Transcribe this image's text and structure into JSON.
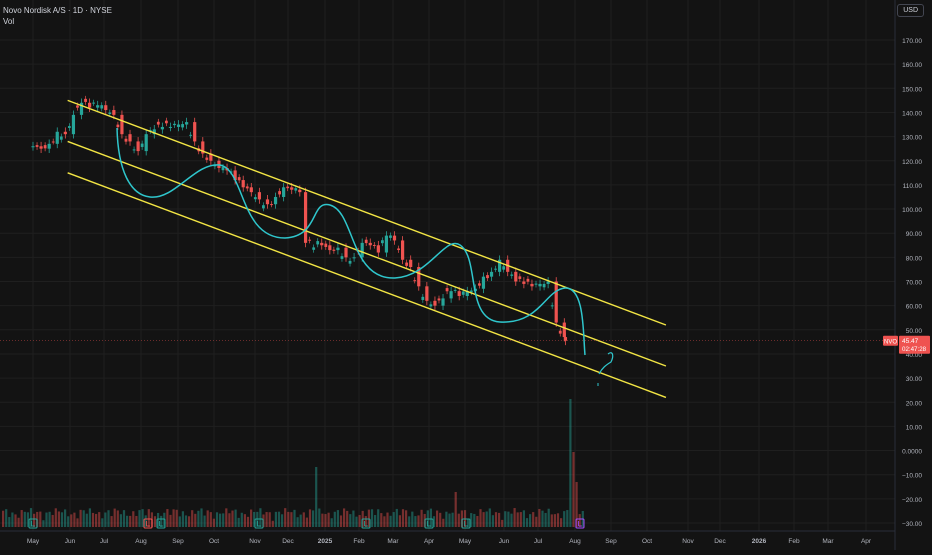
{
  "legend": {
    "title": "Novo Nordisk A/S · 1D · NYSE",
    "vol_label": "Vol"
  },
  "currency_button": "USD",
  "price_tag": {
    "symbol": "NVO",
    "price": "45.47",
    "countdown": "02:47:28"
  },
  "colors": {
    "background": "#131313",
    "up": "#26a69a",
    "down": "#ef5350",
    "channel": "#f2e544",
    "wave": "#2fc6cc",
    "grid": "#1f1f1f",
    "axis_text": "#b2b5be",
    "price_line": "#ef5350"
  },
  "chart_data": {
    "type": "candlestick",
    "y_axis_ticks": [
      "170.00",
      "160.00",
      "150.00",
      "140.00",
      "130.00",
      "120.00",
      "110.00",
      "100.00",
      "90.00",
      "80.00",
      "70.00",
      "60.00",
      "50.00",
      "40.00",
      "30.00",
      "20.00",
      "10.00",
      "0.0000",
      "−10.00",
      "−20.00",
      "−30.00"
    ],
    "x_axis_ticks": [
      "May",
      "Jun",
      "Jul",
      "Aug",
      "Sep",
      "Oct",
      "Nov",
      "Dec",
      "2025",
      "Feb",
      "Mar",
      "Apr",
      "May",
      "Jun",
      "Jul",
      "Aug",
      "Sep",
      "Oct",
      "Nov",
      "Dec",
      "2026",
      "Feb",
      "Mar",
      "Apr"
    ],
    "last_price": 45.47,
    "series": [
      {
        "name": "NVO",
        "type": "ohlc-approx-close",
        "points": [
          {
            "date": "2024-05-01",
            "close": 126
          },
          {
            "date": "2024-05-08",
            "close": 125
          },
          {
            "date": "2024-05-15",
            "close": 127
          },
          {
            "date": "2024-05-22",
            "close": 132
          },
          {
            "date": "2024-05-29",
            "close": 131
          },
          {
            "date": "2024-06-05",
            "close": 139
          },
          {
            "date": "2024-06-12",
            "close": 144
          },
          {
            "date": "2024-06-19",
            "close": 142
          },
          {
            "date": "2024-06-26",
            "close": 143
          },
          {
            "date": "2024-07-03",
            "close": 141
          },
          {
            "date": "2024-07-10",
            "close": 139
          },
          {
            "date": "2024-07-17",
            "close": 131
          },
          {
            "date": "2024-07-24",
            "close": 128
          },
          {
            "date": "2024-07-31",
            "close": 124
          },
          {
            "date": "2024-08-07",
            "close": 131
          },
          {
            "date": "2024-08-14",
            "close": 133
          },
          {
            "date": "2024-08-21",
            "close": 134
          },
          {
            "date": "2024-08-28",
            "close": 134
          },
          {
            "date": "2024-09-04",
            "close": 135
          },
          {
            "date": "2024-09-11",
            "close": 136
          },
          {
            "date": "2024-09-18",
            "close": 128
          },
          {
            "date": "2024-09-25",
            "close": 123
          },
          {
            "date": "2024-10-02",
            "close": 120
          },
          {
            "date": "2024-10-09",
            "close": 117
          },
          {
            "date": "2024-10-16",
            "close": 116
          },
          {
            "date": "2024-10-23",
            "close": 112
          },
          {
            "date": "2024-10-30",
            "close": 109
          },
          {
            "date": "2024-11-06",
            "close": 107
          },
          {
            "date": "2024-11-13",
            "close": 104
          },
          {
            "date": "2024-11-20",
            "close": 102
          },
          {
            "date": "2024-11-27",
            "close": 105
          },
          {
            "date": "2024-12-04",
            "close": 109
          },
          {
            "date": "2024-12-11",
            "close": 108
          },
          {
            "date": "2024-12-18",
            "close": 107
          },
          {
            "date": "2024-12-23",
            "close": 86
          },
          {
            "date": "2025-01-06",
            "close": 85
          },
          {
            "date": "2025-01-13",
            "close": 83
          },
          {
            "date": "2025-01-20",
            "close": 84
          },
          {
            "date": "2025-01-27",
            "close": 80
          },
          {
            "date": "2025-02-03",
            "close": 80
          },
          {
            "date": "2025-02-10",
            "close": 86
          },
          {
            "date": "2025-02-17",
            "close": 85
          },
          {
            "date": "2025-02-24",
            "close": 82
          },
          {
            "date": "2025-03-03",
            "close": 89
          },
          {
            "date": "2025-03-10",
            "close": 87
          },
          {
            "date": "2025-03-17",
            "close": 79
          },
          {
            "date": "2025-03-24",
            "close": 76
          },
          {
            "date": "2025-03-31",
            "close": 68
          },
          {
            "date": "2025-04-07",
            "close": 62
          },
          {
            "date": "2025-04-14",
            "close": 60
          },
          {
            "date": "2025-04-21",
            "close": 63
          },
          {
            "date": "2025-04-28",
            "close": 66
          },
          {
            "date": "2025-05-05",
            "close": 64
          },
          {
            "date": "2025-05-12",
            "close": 66
          },
          {
            "date": "2025-05-19",
            "close": 67
          },
          {
            "date": "2025-05-26",
            "close": 72
          },
          {
            "date": "2025-06-02",
            "close": 74
          },
          {
            "date": "2025-06-09",
            "close": 79
          },
          {
            "date": "2025-06-16",
            "close": 74
          },
          {
            "date": "2025-06-23",
            "close": 70
          },
          {
            "date": "2025-06-30",
            "close": 69
          },
          {
            "date": "2025-07-07",
            "close": 68
          },
          {
            "date": "2025-07-14",
            "close": 69
          },
          {
            "date": "2025-07-21",
            "close": 70
          },
          {
            "date": "2025-07-28",
            "close": 53
          },
          {
            "date": "2025-08-04",
            "close": 47
          },
          {
            "date": "2025-08-05",
            "close": 45.47
          }
        ]
      }
    ],
    "channel_lines": [
      {
        "name": "upper",
        "points": [
          {
            "date": "2024-05-31",
            "value": 145
          },
          {
            "date": "2025-10-31",
            "value": 52
          }
        ]
      },
      {
        "name": "middle",
        "points": [
          {
            "date": "2024-05-31",
            "value": 128
          },
          {
            "date": "2025-10-31",
            "value": 35
          }
        ]
      },
      {
        "name": "lower",
        "points": [
          {
            "date": "2024-05-31",
            "value": 115
          },
          {
            "date": "2025-10-31",
            "value": 22
          }
        ]
      }
    ],
    "volume_note": "volume histogram at bottom; spike near Aug 2025"
  }
}
